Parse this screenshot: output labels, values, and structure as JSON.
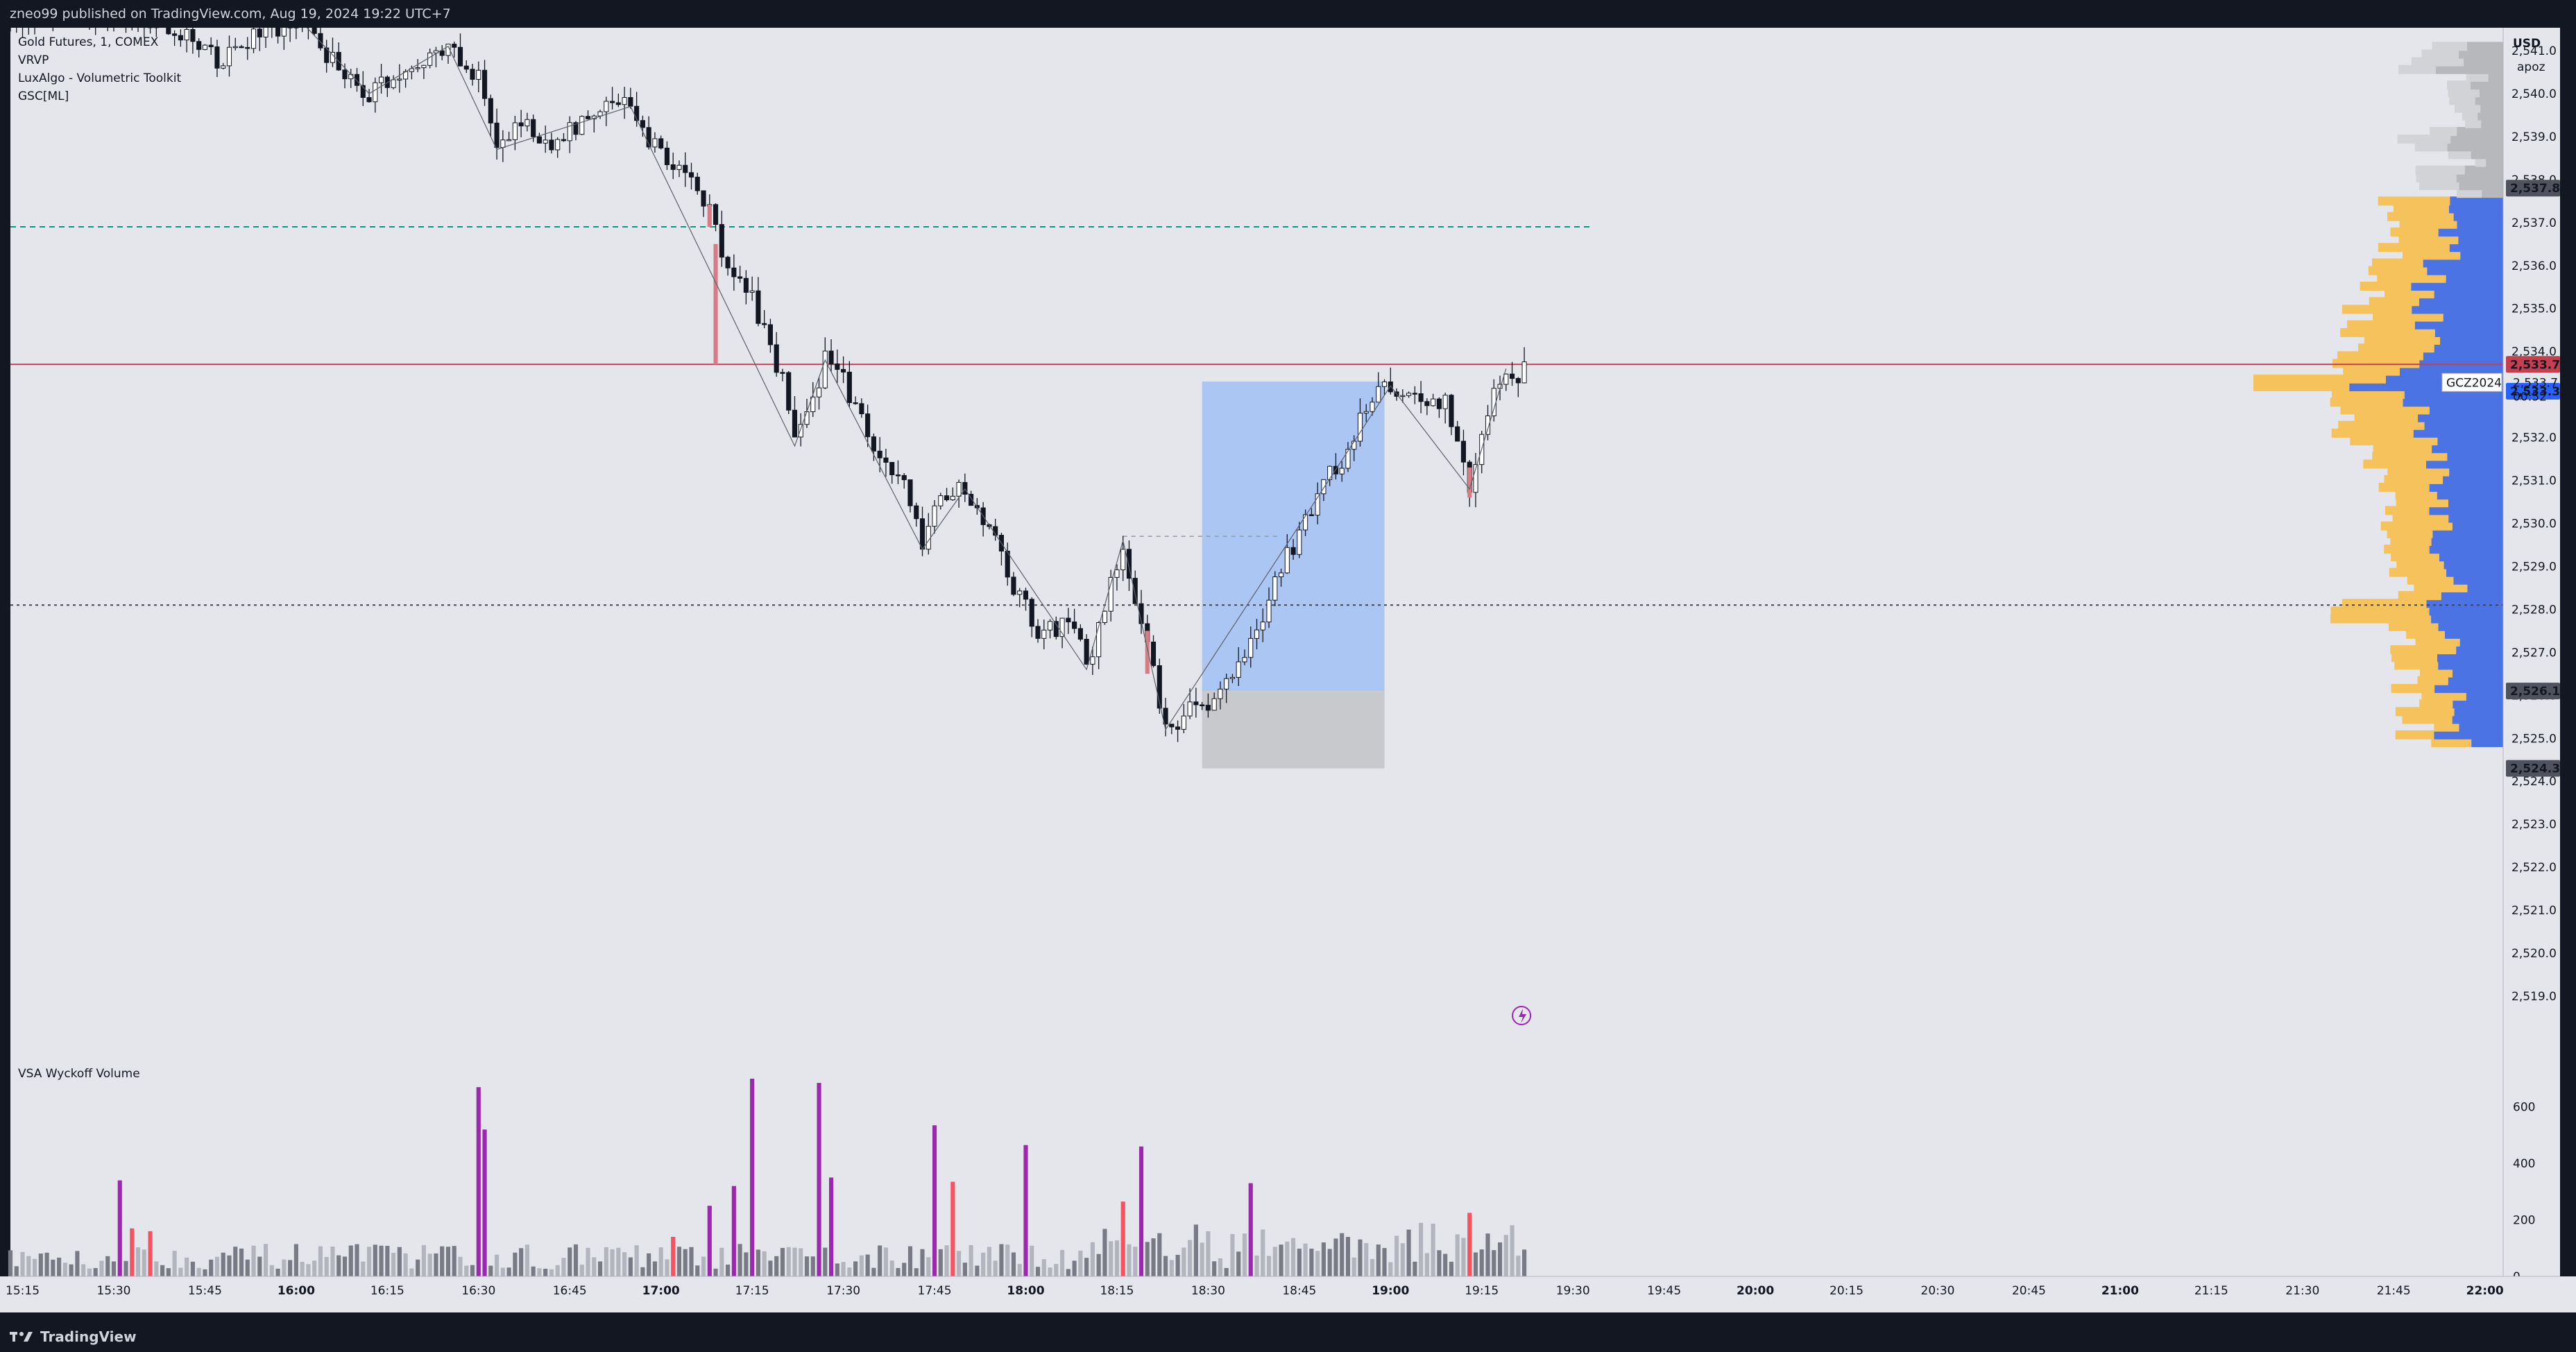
{
  "header": {
    "publish_text": "zneo99 published on TradingView.com, Aug 19, 2024 19:22 UTC+7"
  },
  "footer": {
    "brand": "TradingView"
  },
  "legend": {
    "symbol": "Gold Futures, 1, COMEX",
    "indicators": [
      "VRVP",
      "LuxAlgo - Volumetric Toolkit",
      "GSC[ML]"
    ],
    "volume_pane_title": "VSA Wyckoff Volume"
  },
  "price_scale": {
    "currency": "USD",
    "mode": "apoz",
    "ticks": [
      "2,541.0",
      "2,540.0",
      "2,539.0",
      "2,538.0",
      "2,537.0",
      "2,536.0",
      "2,535.0",
      "2,534.0",
      "2,533.0",
      "2,532.0",
      "2,531.0",
      "2,530.0",
      "2,529.0",
      "2,528.0",
      "2,527.0",
      "2,526.0",
      "2,525.0",
      "2,524.0",
      "2,523.0",
      "2,522.0",
      "2,521.0",
      "2,520.0",
      "2,519.0"
    ],
    "badges": {
      "high": "2,537.8",
      "last": "2,533.7",
      "ticker": "GCZ2024",
      "last_plain": "2,533.7",
      "countdown": "00:52",
      "poc": "2,533.3",
      "low_target": "2,526.1",
      "stop": "2,524.3"
    }
  },
  "volume_scale": {
    "ticks": [
      "600",
      "400",
      "200",
      "0"
    ]
  },
  "time_axis": {
    "labels": [
      "15:15",
      "15:30",
      "15:45",
      "16:00",
      "16:15",
      "16:30",
      "16:45",
      "17:00",
      "17:15",
      "17:30",
      "17:45",
      "18:00",
      "18:15",
      "18:30",
      "18:45",
      "19:00",
      "19:15",
      "19:30",
      "19:45",
      "20:00",
      "20:15",
      "20:30",
      "20:45",
      "21:00",
      "21:15",
      "21:30",
      "21:45",
      "22:00"
    ],
    "bold_labels": [
      "16:00",
      "17:00",
      "18:00",
      "19:00",
      "20:00",
      "21:00",
      "22:00"
    ]
  },
  "colors": {
    "background": "#e4e6eb",
    "panel": "#131722",
    "candle_up": "#ffffff",
    "candle_down": "#131722",
    "wick": "#131722",
    "volume_climax": "#9c27b0",
    "volume_red": "#f7525f",
    "volume_gray": "#787b86",
    "profile_up": "#f5c25b",
    "profile_down": "#4b73e3",
    "long_target_fill": "#abc6f2",
    "long_stop_fill": "#c8c9cc",
    "last_price_line": "#c2404f",
    "dashed_green": "#089981",
    "dashed_black": "#434651"
  },
  "chart_data": {
    "type": "candlestick",
    "symbol": "Gold Futures, 1, COMEX",
    "interval": "1 minute",
    "ylim": [
      2518.5,
      2541.5
    ],
    "x_range": [
      "15:13",
      "22:03"
    ],
    "key_levels": {
      "last_price": 2533.7,
      "green_dashed": 2536.9,
      "black_dotted": 2528.1,
      "range_high_marker": 2537.8,
      "poc": 2533.3
    },
    "position": {
      "type": "long",
      "time_start": "18:29",
      "time_end": "18:59",
      "entry": 2526.1,
      "target": 2533.3,
      "stop": 2524.3
    },
    "price_keypoints": [
      [
        "15:13",
        2541.8
      ],
      [
        "15:20",
        2541.9
      ],
      [
        "15:40",
        2541.6
      ],
      [
        "15:47",
        2540.8
      ],
      [
        "16:00",
        2541.8
      ],
      [
        "16:05",
        2540.9
      ],
      [
        "16:12",
        2540.0
      ],
      [
        "16:20",
        2540.7
      ],
      [
        "16:25",
        2541.1
      ],
      [
        "16:30",
        2540.3
      ],
      [
        "16:33",
        2538.7
      ],
      [
        "16:37",
        2539.3
      ],
      [
        "16:42",
        2538.9
      ],
      [
        "16:48",
        2539.5
      ],
      [
        "16:55",
        2539.7
      ],
      [
        "17:00",
        2538.5
      ],
      [
        "17:05",
        2538.2
      ],
      [
        "17:08",
        2537.2
      ],
      [
        "17:10",
        2536.3
      ],
      [
        "17:15",
        2535.2
      ],
      [
        "17:20",
        2533.3
      ],
      [
        "17:22",
        2531.8
      ],
      [
        "17:25",
        2532.9
      ],
      [
        "17:27",
        2533.8
      ],
      [
        "17:30",
        2533.3
      ],
      [
        "17:35",
        2531.8
      ],
      [
        "17:40",
        2530.8
      ],
      [
        "17:43",
        2529.4
      ],
      [
        "17:46",
        2530.6
      ],
      [
        "17:50",
        2530.8
      ],
      [
        "17:55",
        2529.8
      ],
      [
        "17:58",
        2528.5
      ],
      [
        "18:02",
        2527.5
      ],
      [
        "18:08",
        2527.7
      ],
      [
        "18:10",
        2526.6
      ],
      [
        "18:13",
        2528.0
      ],
      [
        "18:16",
        2529.6
      ],
      [
        "18:18",
        2528.3
      ],
      [
        "18:20",
        2527.1
      ],
      [
        "18:23",
        2525.2
      ],
      [
        "18:28",
        2525.8
      ],
      [
        "18:30",
        2525.6
      ],
      [
        "18:32",
        2526.1
      ],
      [
        "18:35",
        2526.8
      ],
      [
        "18:38",
        2527.6
      ],
      [
        "18:42",
        2529.0
      ],
      [
        "18:45",
        2529.6
      ],
      [
        "18:48",
        2530.8
      ],
      [
        "18:52",
        2531.5
      ],
      [
        "18:55",
        2532.4
      ],
      [
        "18:58",
        2533.1
      ],
      [
        "19:00",
        2533.2
      ],
      [
        "19:03",
        2532.9
      ],
      [
        "19:06",
        2532.7
      ],
      [
        "19:09",
        2532.8
      ],
      [
        "19:12",
        2531.5
      ],
      [
        "19:13",
        2530.8
      ],
      [
        "19:15",
        2532.0
      ],
      [
        "19:17",
        2533.2
      ],
      [
        "19:19",
        2533.6
      ],
      [
        "19:21",
        2533.3
      ],
      [
        "19:22",
        2533.7
      ]
    ],
    "volume": {
      "ylim": [
        0,
        700
      ],
      "climax_bars": [
        {
          "time": "15:31",
          "value": 340
        },
        {
          "time": "16:30",
          "value": 670
        },
        {
          "time": "16:31",
          "value": 520
        },
        {
          "time": "17:15",
          "value": 700
        },
        {
          "time": "17:26",
          "value": 685
        },
        {
          "time": "17:28",
          "value": 350
        },
        {
          "time": "17:45",
          "value": 535
        },
        {
          "time": "18:00",
          "value": 465
        },
        {
          "time": "18:19",
          "value": 460
        },
        {
          "time": "18:37",
          "value": 330
        },
        {
          "time": "17:08",
          "value": 250
        },
        {
          "time": "17:12",
          "value": 320
        }
      ],
      "red_bars": [
        {
          "time": "15:33",
          "value": 170
        },
        {
          "time": "15:36",
          "value": 160
        },
        {
          "time": "17:02",
          "value": 140
        },
        {
          "time": "17:48",
          "value": 335
        },
        {
          "time": "18:16",
          "value": 265
        },
        {
          "time": "19:13",
          "value": 225
        }
      ]
    }
  }
}
